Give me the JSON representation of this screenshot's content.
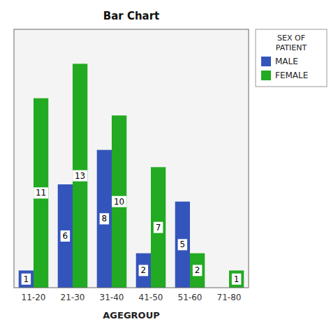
{
  "chart_data": {
    "type": "bar",
    "title": "Bar Chart",
    "xlabel": "AGEGROUP",
    "categories": [
      "11-20",
      "21-30",
      "31-40",
      "41-50",
      "51-60",
      "71-80"
    ],
    "series": [
      {
        "name": "MALE",
        "color": "#3355bb",
        "values": [
          1,
          6,
          8,
          2,
          5,
          0
        ]
      },
      {
        "name": "FEMALE",
        "color": "#22aa22",
        "values": [
          11,
          13,
          10,
          7,
          2,
          1
        ]
      }
    ],
    "ylim": [
      0,
      15
    ],
    "tick_labels": "x",
    "grid": false,
    "data_labels": true,
    "legend": "right",
    "legend_title": "SEX OF\nPATIENT"
  }
}
